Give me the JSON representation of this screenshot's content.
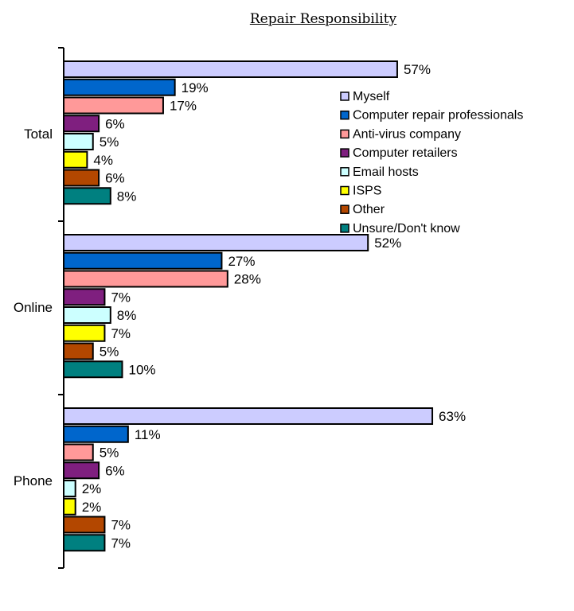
{
  "chart_data": {
    "type": "bar",
    "orientation": "horizontal",
    "title": "Repair Responsibility",
    "xlabel": "",
    "ylabel": "",
    "value_suffix": "%",
    "xlim": [
      0,
      63
    ],
    "grid": false,
    "legend_position": "top-right",
    "categories": [
      "Total",
      "Online",
      "Phone"
    ],
    "series": [
      {
        "name": "Myself",
        "color": "#ccccff",
        "values": [
          57,
          52,
          63
        ]
      },
      {
        "name": "Computer repair professionals",
        "color": "#0066cc",
        "values": [
          19,
          27,
          11
        ]
      },
      {
        "name": "Anti-virus company",
        "color": "#ff9999",
        "values": [
          17,
          28,
          5
        ]
      },
      {
        "name": "Computer retailers",
        "color": "#7f1f7f",
        "values": [
          6,
          7,
          6
        ]
      },
      {
        "name": "Email hosts",
        "color": "#ccffff",
        "values": [
          5,
          8,
          2
        ]
      },
      {
        "name": "ISPS",
        "color": "#ffff00",
        "values": [
          4,
          7,
          2
        ]
      },
      {
        "name": "Other",
        "color": "#b34700",
        "values": [
          6,
          5,
          7
        ]
      },
      {
        "name": "Unsure/Don't know",
        "color": "#008080",
        "values": [
          8,
          10,
          7
        ]
      }
    ]
  }
}
